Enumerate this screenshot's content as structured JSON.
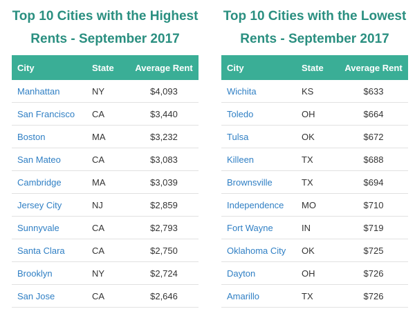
{
  "high": {
    "title_line1": "Top 10 Cities with the Highest",
    "title_line2": "Rents - September 2017",
    "headers": {
      "city": "City",
      "state": "State",
      "rent": "Average Rent"
    },
    "rows": [
      {
        "city": "Manhattan",
        "state": "NY",
        "rent": "$4,093"
      },
      {
        "city": "San Francisco",
        "state": "CA",
        "rent": "$3,440"
      },
      {
        "city": "Boston",
        "state": "MA",
        "rent": "$3,232"
      },
      {
        "city": "San Mateo",
        "state": "CA",
        "rent": "$3,083"
      },
      {
        "city": "Cambridge",
        "state": "MA",
        "rent": "$3,039"
      },
      {
        "city": "Jersey City",
        "state": "NJ",
        "rent": "$2,859"
      },
      {
        "city": "Sunnyvale",
        "state": "CA",
        "rent": "$2,793"
      },
      {
        "city": "Santa Clara",
        "state": "CA",
        "rent": "$2,750"
      },
      {
        "city": "Brooklyn",
        "state": "NY",
        "rent": "$2,724"
      },
      {
        "city": "San Jose",
        "state": "CA",
        "rent": "$2,646"
      }
    ]
  },
  "low": {
    "title_line1": "Top 10 Cities with the Lowest",
    "title_line2": "Rents - September 2017",
    "headers": {
      "city": "City",
      "state": "State",
      "rent": "Average Rent"
    },
    "rows": [
      {
        "city": "Wichita",
        "state": "KS",
        "rent": "$633"
      },
      {
        "city": "Toledo",
        "state": "OH",
        "rent": "$664"
      },
      {
        "city": "Tulsa",
        "state": "OK",
        "rent": "$672"
      },
      {
        "city": "Killeen",
        "state": "TX",
        "rent": "$688"
      },
      {
        "city": "Brownsville",
        "state": "TX",
        "rent": "$694"
      },
      {
        "city": "Independence",
        "state": "MO",
        "rent": "$710"
      },
      {
        "city": "Fort Wayne",
        "state": "IN",
        "rent": "$719"
      },
      {
        "city": "Oklahoma City",
        "state": "OK",
        "rent": "$725"
      },
      {
        "city": "Dayton",
        "state": "OH",
        "rent": "$726"
      },
      {
        "city": "Amarillo",
        "state": "TX",
        "rent": "$726"
      }
    ]
  },
  "colors": {
    "title": "#2a8f80",
    "header_bg": "#3aae96",
    "header_text": "#ffffff",
    "city_link": "#2f7fc4",
    "cell_text": "#333333",
    "row_border": "#e1e1e1"
  }
}
